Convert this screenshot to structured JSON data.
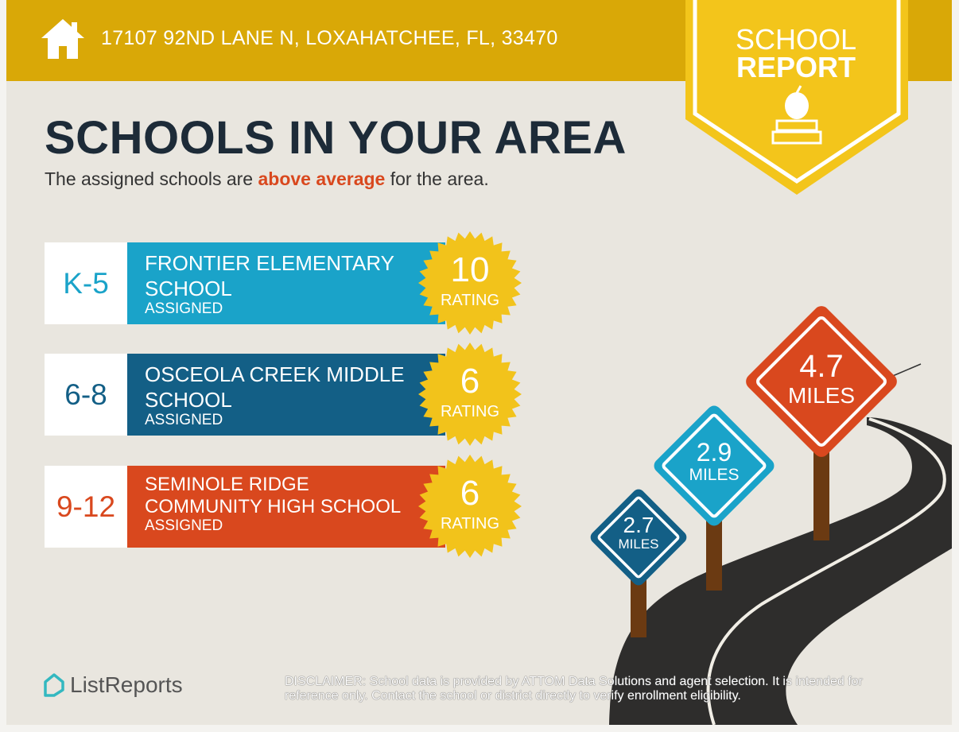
{
  "header": {
    "address": "17107 92ND LANE N, LOXAHATCHEE, FL, 33470",
    "badge_line1": "SCHOOL",
    "badge_line2": "REPORT"
  },
  "title": "SCHOOLS IN YOUR AREA",
  "subtitle": {
    "before": "The assigned schools are ",
    "highlight": "above average",
    "after": " for the area."
  },
  "schools": [
    {
      "grade": "K-5",
      "name": "FRONTIER ELEMENTARY SCHOOL",
      "status": "ASSIGNED",
      "rating": "10",
      "rating_label": "RATING",
      "color": "#1aa3c9"
    },
    {
      "grade": "6-8",
      "name": "OSCEOLA CREEK MIDDLE SCHOOL",
      "status": "ASSIGNED",
      "rating": "6",
      "rating_label": "RATING",
      "color": "#135f86"
    },
    {
      "grade": "9-12",
      "name": "SEMINOLE RIDGE COMMUNITY HIGH SCHOOL",
      "status": "ASSIGNED",
      "rating": "6",
      "rating_label": "RATING",
      "color": "#d9481e"
    }
  ],
  "distances": [
    {
      "value": "2.7",
      "unit": "MILES",
      "color": "#135f86"
    },
    {
      "value": "2.9",
      "unit": "MILES",
      "color": "#1aa3c9"
    },
    {
      "value": "4.7",
      "unit": "MILES",
      "color": "#d9481e"
    }
  ],
  "footer": {
    "logo": "ListReports",
    "disclaimer_label": "DISCLAIMER:",
    "disclaimer": " School data is provided by ATTOM Data Solutions and agent selection. It is intended for reference only. Contact the school or district directly to verify enrollment eligibility."
  },
  "colors": {
    "header": "#d9a807",
    "badge": "#f3c51b",
    "seal": "#f2c31b",
    "title": "#1d2b38",
    "road": "#2e2d2c",
    "post": "#6b3a12"
  }
}
